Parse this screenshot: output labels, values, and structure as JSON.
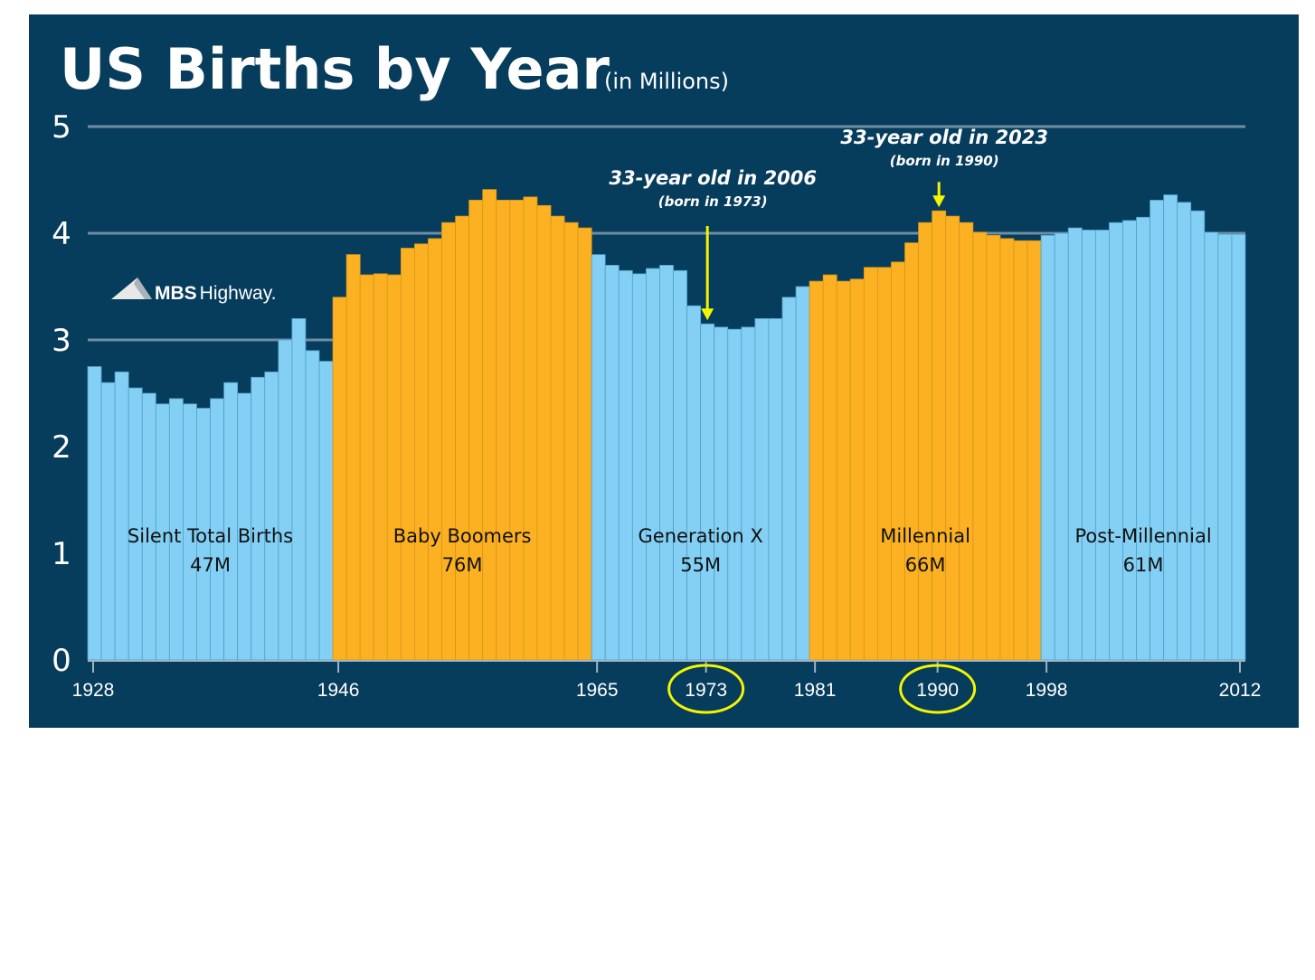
{
  "chart_data": {
    "type": "bar",
    "title": "US Births by Year",
    "subtitle": "(in Millions)",
    "xlabel": "",
    "ylabel": "",
    "ylim": [
      0,
      5
    ],
    "yticks": [
      "0",
      "1",
      "2",
      "3",
      "4",
      "5"
    ],
    "grid": true,
    "x_start": 1928,
    "x_end": 2012,
    "xtick_labels": [
      "1928",
      "1946",
      "1965",
      "1973",
      "1981",
      "1990",
      "1998",
      "2012"
    ],
    "circled_xticks": [
      "1973",
      "1990"
    ],
    "values": [
      2.75,
      2.6,
      2.7,
      2.55,
      2.5,
      2.4,
      2.45,
      2.4,
      2.36,
      2.45,
      2.6,
      2.5,
      2.65,
      2.7,
      3.0,
      3.2,
      2.9,
      2.8,
      3.4,
      3.8,
      3.61,
      3.62,
      3.61,
      3.86,
      3.9,
      3.95,
      4.1,
      4.16,
      4.31,
      4.41,
      4.31,
      4.31,
      4.34,
      4.26,
      4.16,
      4.1,
      4.05,
      3.8,
      3.7,
      3.65,
      3.62,
      3.67,
      3.7,
      3.65,
      3.32,
      3.15,
      3.12,
      3.1,
      3.12,
      3.2,
      3.2,
      3.4,
      3.5,
      3.55,
      3.61,
      3.55,
      3.57,
      3.68,
      3.68,
      3.73,
      3.91,
      4.1,
      4.21,
      4.16,
      4.1,
      4.01,
      3.98,
      3.95,
      3.93,
      3.93,
      3.98,
      4.0,
      4.05,
      4.03,
      4.03,
      4.1,
      4.12,
      4.15,
      4.31,
      4.36,
      4.29,
      4.21,
      4.01,
      3.99,
      3.99
    ],
    "groups": [
      {
        "name": "Silent Total Births",
        "total": "47M",
        "start": 1928,
        "end": 1945,
        "color": "#84d0f5"
      },
      {
        "name": "Baby Boomers",
        "total": "76M",
        "start": 1946,
        "end": 1964,
        "color": "#fbb121"
      },
      {
        "name": "Generation X",
        "total": "55M",
        "start": 1965,
        "end": 1980,
        "color": "#84d0f5"
      },
      {
        "name": "Millennial",
        "total": "66M",
        "start": 1981,
        "end": 1997,
        "color": "#fbb121"
      },
      {
        "name": "Post-Millennial",
        "total": "61M",
        "start": 1998,
        "end": 2012,
        "color": "#84d0f5"
      }
    ],
    "annotations": [
      {
        "year": 1973,
        "text": "33-year old in 2006",
        "subtext": "(born in 1973)"
      },
      {
        "year": 1990,
        "text": "33-year old in 2023",
        "subtext": "(born in 1990)"
      }
    ],
    "logo_text": {
      "bold": "MBS",
      "light": "Highway."
    }
  },
  "colors": {
    "background": "#063c5c",
    "gridline": "#6f8ea3",
    "highlight": "#f5f500",
    "bar_border": "#4f9fc9",
    "bar_border_orange": "#d9951a"
  }
}
